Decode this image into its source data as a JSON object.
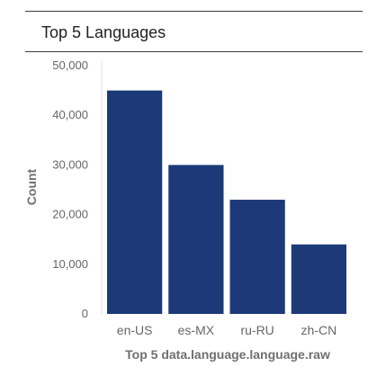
{
  "panel": {
    "title": "Top 5 Languages"
  },
  "colors": {
    "bar": "#1d3a78",
    "axis": "#e0e0e0",
    "rule": "#3c3c3c"
  },
  "chart_data": {
    "type": "bar",
    "title": "Top 5 Languages",
    "xlabel": "Top 5 data.language.language.raw",
    "ylabel": "Count",
    "categories": [
      "en-US",
      "es-MX",
      "ru-RU",
      "zh-CN"
    ],
    "values": [
      45000,
      30000,
      23000,
      14000
    ],
    "ylim": [
      0,
      50000
    ],
    "yticks": [
      0,
      10000,
      20000,
      30000,
      40000,
      50000
    ],
    "ytick_labels": [
      "0",
      "10,000",
      "20,000",
      "30,000",
      "40,000",
      "50,000"
    ],
    "grid": false,
    "legend": "none"
  }
}
